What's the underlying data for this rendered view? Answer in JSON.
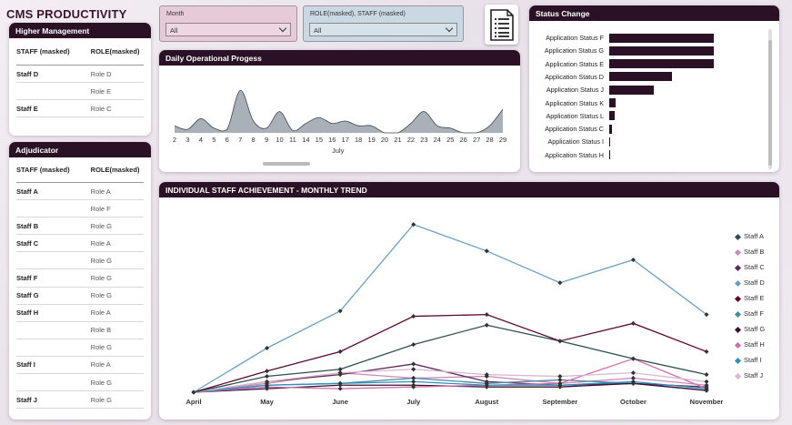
{
  "title": "CMS PRODUCTIVITY",
  "higher_management": {
    "header": "Higher Management",
    "col1": "STAFF (masked)",
    "col2": "ROLE(masked)",
    "rows": [
      {
        "staff": "Staff D",
        "role": "Role D"
      },
      {
        "staff": "",
        "role": "Role E"
      },
      {
        "staff": "Staff E",
        "role": "Role C"
      }
    ]
  },
  "adjudicator": {
    "header": "Adjudicator",
    "col1": "STAFF (masked)",
    "col2": "ROLE(masked)",
    "rows": [
      {
        "staff": "Staff A",
        "role": "Role A"
      },
      {
        "staff": "",
        "role": "Role F"
      },
      {
        "staff": "Staff B",
        "role": "Role G"
      },
      {
        "staff": "Staff C",
        "role": "Role A"
      },
      {
        "staff": "",
        "role": "Role G"
      },
      {
        "staff": "Staff F",
        "role": "Role G"
      },
      {
        "staff": "Staff G",
        "role": "Role G"
      },
      {
        "staff": "Staff H",
        "role": "Role A"
      },
      {
        "staff": "",
        "role": "Role B"
      },
      {
        "staff": "",
        "role": "Role G"
      },
      {
        "staff": "Staff I",
        "role": "Role A"
      },
      {
        "staff": "",
        "role": "Role G"
      },
      {
        "staff": "Staff J",
        "role": "Role G"
      }
    ]
  },
  "filters": {
    "month": {
      "label": "Month",
      "value": "All",
      "color": "#e8c9d8"
    },
    "role_staff": {
      "label": "ROLE(masked), STAFF (masked)",
      "value": "All",
      "color": "#c9d8e2"
    }
  },
  "icons": {
    "report": "document-list-icon",
    "dropdown": "chevron-down-icon"
  },
  "daily_chart": {
    "header": "Daily Operational Progess",
    "xlabel": "July",
    "color": "#a9b0b8",
    "line_color": "#40474f"
  },
  "status_chart": {
    "header": "Status Change",
    "color": "#2b1126"
  },
  "trend_chart": {
    "header": "INDIVIDUAL STAFF ACHIEVEMENT - MONTHLY TREND"
  },
  "chart_data": [
    {
      "type": "area",
      "title": "Daily Operational Progess",
      "xlabel": "July",
      "x": [
        2,
        3,
        4,
        5,
        6,
        7,
        8,
        9,
        10,
        11,
        14,
        15,
        16,
        17,
        18,
        19,
        20,
        21,
        22,
        23,
        24,
        25,
        26,
        27,
        28,
        29
      ],
      "values": [
        3,
        1.5,
        6,
        2,
        1.5,
        18,
        5,
        2,
        9,
        1,
        4,
        6.5,
        4,
        5,
        3,
        3,
        0,
        0,
        4,
        9,
        3,
        2,
        0,
        0,
        3,
        10
      ],
      "ylim": [
        0,
        20
      ]
    },
    {
      "type": "bar",
      "title": "Status Change",
      "categories": [
        "Application Status F",
        "Application Status G",
        "Application Status E",
        "Application Status D",
        "Application Status J",
        "Application Status K",
        "Application Status L",
        "Application Status C",
        "Application Status I",
        "Application Status H"
      ],
      "values": [
        100,
        100,
        100,
        60,
        43,
        6,
        5,
        3,
        1,
        0.5
      ],
      "xlim": [
        0,
        150
      ]
    },
    {
      "type": "line",
      "title": "INDIVIDUAL STAFF ACHIEVEMENT - MONTHLY TREND",
      "categories": [
        "April",
        "May",
        "June",
        "July",
        "August",
        "September",
        "October",
        "November"
      ],
      "ylim": [
        0,
        100
      ],
      "series": [
        {
          "name": "Staff A",
          "color": "#2f4f4f",
          "values": [
            0,
            9,
            13,
            27,
            38,
            29,
            19,
            10
          ]
        },
        {
          "name": "Staff B",
          "color": "#c98bb9",
          "values": [
            0,
            5,
            11,
            8,
            9,
            5,
            8,
            4
          ]
        },
        {
          "name": "Staff C",
          "color": "#5a2a5a",
          "values": [
            0,
            6,
            10,
            16,
            6,
            4,
            5,
            3
          ]
        },
        {
          "name": "Staff D",
          "color": "#6a9fc0",
          "values": [
            0,
            25,
            46,
            95,
            80,
            62,
            75,
            44
          ]
        },
        {
          "name": "Staff E",
          "color": "#5a0a30",
          "values": [
            0,
            12,
            23,
            43,
            44,
            29,
            39,
            23
          ]
        },
        {
          "name": "Staff F",
          "color": "#4a8aa0",
          "values": [
            0,
            4,
            5,
            8,
            5,
            7,
            5,
            1
          ]
        },
        {
          "name": "Staff G",
          "color": "#3b1030",
          "values": [
            0,
            2,
            4,
            4,
            3,
            3,
            5,
            1
          ]
        },
        {
          "name": "Staff H",
          "color": "#d070a8",
          "values": [
            0,
            3,
            2,
            3,
            4,
            5,
            19,
            2
          ]
        },
        {
          "name": "Staff I",
          "color": "#3090c0",
          "values": [
            0,
            4,
            5,
            6,
            4,
            4,
            6,
            2
          ]
        },
        {
          "name": "Staff J",
          "color": "#d8b8cc",
          "values": [
            0,
            6,
            11,
            13,
            10,
            9,
            11,
            6
          ]
        }
      ]
    }
  ]
}
